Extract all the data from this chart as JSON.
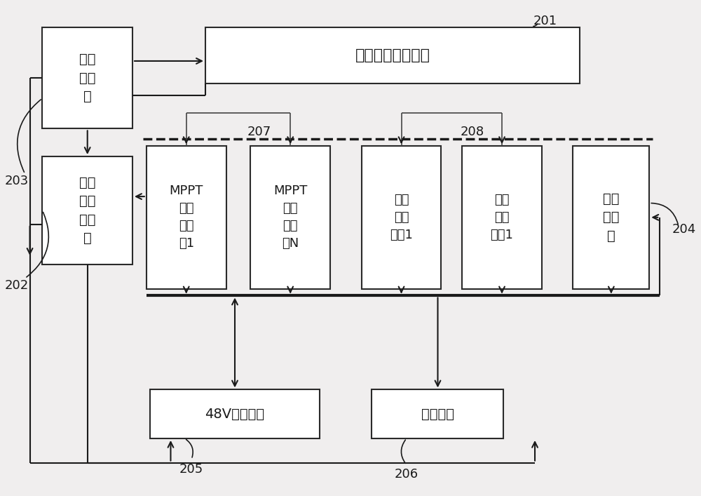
{
  "bg_color": "#f0eeee",
  "box_color": "#ffffff",
  "box_edge": "#2a2a2a",
  "text_color": "#1a1a1a",
  "arrow_color": "#1a1a1a",
  "label_201": "201",
  "label_202": "202",
  "label_203": "203",
  "label_204": "204",
  "label_205": "205",
  "label_206": "206",
  "label_207": "207",
  "label_208": "208",
  "box_guang_fu": "光伏\n接入\n筱",
  "box_zhi_neng": "智能控制监控单元",
  "box_mppt1": "MPPT\n光伏\n充电\n模1",
  "box_mpptN": "MPPT\n光伏\n充电\n模N",
  "box_shidian1": "市电\n充电\n模块1",
  "box_shidianN": "市电\n充电\n模块1",
  "box_jiaoliu": "交流\n接入\n筱",
  "box_qiehuan": "光伏\n市电\n切换\n器",
  "box_48v": "48V蓄电池组",
  "box_zhiliu": "直流负载",
  "fig_w": 10.0,
  "fig_h": 7.07,
  "dpi": 100
}
